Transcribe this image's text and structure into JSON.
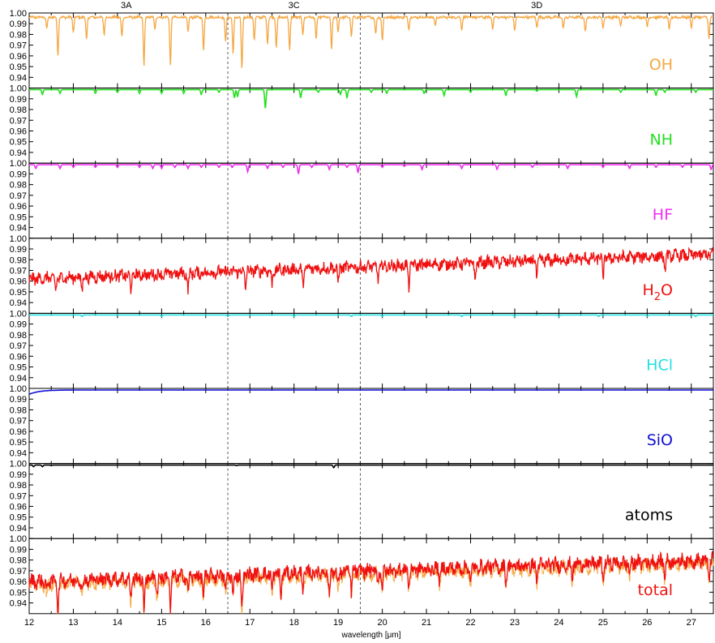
{
  "chart_data": {
    "type": "line",
    "xlabel": "wavelength [μm]",
    "xlim": [
      12,
      27.5
    ],
    "ylim": [
      0.93,
      1.0
    ],
    "x_ticks": [
      "12",
      "13",
      "14",
      "15",
      "16",
      "17",
      "18",
      "19",
      "20",
      "21",
      "22",
      "23",
      "24",
      "25",
      "26",
      "27"
    ],
    "y_ticks": [
      "0.94",
      "0.95",
      "0.96",
      "0.97",
      "0.98",
      "0.99",
      "1.00"
    ],
    "band_divisions": [
      16.5,
      19.5
    ],
    "band_labels": [
      {
        "label": "3A",
        "x": 14.2
      },
      {
        "label": "3C",
        "x": 18.0
      },
      {
        "label": "3D",
        "x": 23.5
      }
    ],
    "panels": [
      {
        "label": "OH",
        "color": "#F5A742",
        "baseline": 0.996,
        "noise": 0.001,
        "trend": 0.0,
        "lines": [
          [
            12.4,
            0.985
          ],
          [
            12.65,
            0.961
          ],
          [
            13.0,
            0.982
          ],
          [
            13.3,
            0.975
          ],
          [
            13.7,
            0.98
          ],
          [
            14.1,
            0.978
          ],
          [
            14.6,
            0.951
          ],
          [
            14.85,
            0.985
          ],
          [
            15.2,
            0.952
          ],
          [
            15.6,
            0.982
          ],
          [
            15.95,
            0.965
          ],
          [
            16.45,
            0.974
          ],
          [
            16.62,
            0.962
          ],
          [
            16.82,
            0.947
          ],
          [
            17.1,
            0.975
          ],
          [
            17.4,
            0.972
          ],
          [
            17.6,
            0.968
          ],
          [
            17.9,
            0.965
          ],
          [
            18.2,
            0.98
          ],
          [
            18.5,
            0.975
          ],
          [
            18.85,
            0.966
          ],
          [
            19.0,
            0.982
          ],
          [
            19.3,
            0.978
          ],
          [
            19.85,
            0.98
          ],
          [
            20.0,
            0.974
          ],
          [
            20.6,
            0.985
          ],
          [
            21.2,
            0.988
          ],
          [
            21.8,
            0.985
          ],
          [
            22.5,
            0.986
          ],
          [
            23.0,
            0.984
          ],
          [
            23.5,
            0.987
          ],
          [
            24.1,
            0.985
          ],
          [
            24.6,
            0.982
          ],
          [
            25.0,
            0.986
          ],
          [
            25.4,
            0.988
          ],
          [
            26.0,
            0.987
          ],
          [
            26.5,
            0.984
          ],
          [
            27.0,
            0.986
          ],
          [
            27.4,
            0.976
          ]
        ]
      },
      {
        "label": "NH",
        "color": "#22E21F",
        "baseline": 0.9985,
        "noise": 0.0,
        "trend": 0.0,
        "lines": [
          [
            12.3,
            0.994
          ],
          [
            12.7,
            0.995
          ],
          [
            13.5,
            0.995
          ],
          [
            14.0,
            0.996
          ],
          [
            14.5,
            0.995
          ],
          [
            15.0,
            0.995
          ],
          [
            15.5,
            0.995
          ],
          [
            15.9,
            0.994
          ],
          [
            16.3,
            0.996
          ],
          [
            16.65,
            0.991
          ],
          [
            16.72,
            0.992
          ],
          [
            17.35,
            0.981
          ],
          [
            18.15,
            0.991
          ],
          [
            18.55,
            0.996
          ],
          [
            19.05,
            0.994
          ],
          [
            19.2,
            0.991
          ],
          [
            19.75,
            0.996
          ],
          [
            20.1,
            0.995
          ],
          [
            20.95,
            0.995
          ],
          [
            21.4,
            0.993
          ],
          [
            22.0,
            0.996
          ],
          [
            22.8,
            0.993
          ],
          [
            23.5,
            0.997
          ],
          [
            24.4,
            0.992
          ],
          [
            25.4,
            0.996
          ],
          [
            26.2,
            0.993
          ],
          [
            26.4,
            0.996
          ],
          [
            27.1,
            0.996
          ]
        ]
      },
      {
        "label": "HF",
        "color": "#F12FF1",
        "baseline": 0.9985,
        "noise": 0.0,
        "trend": 0.0,
        "lines": [
          [
            12.15,
            0.995
          ],
          [
            12.7,
            0.995
          ],
          [
            13.0,
            0.996
          ],
          [
            13.5,
            0.996
          ],
          [
            14.0,
            0.996
          ],
          [
            14.5,
            0.996
          ],
          [
            14.8,
            0.995
          ],
          [
            15.0,
            0.995
          ],
          [
            15.3,
            0.996
          ],
          [
            15.6,
            0.995
          ],
          [
            15.9,
            0.996
          ],
          [
            16.3,
            0.996
          ],
          [
            16.6,
            0.996
          ],
          [
            16.95,
            0.992
          ],
          [
            17.4,
            0.995
          ],
          [
            17.75,
            0.996
          ],
          [
            18.1,
            0.99
          ],
          [
            18.4,
            0.996
          ],
          [
            18.8,
            0.994
          ],
          [
            19.2,
            0.996
          ],
          [
            19.45,
            0.991
          ],
          [
            20.0,
            0.996
          ],
          [
            20.5,
            0.997
          ],
          [
            20.9,
            0.994
          ],
          [
            21.8,
            0.995
          ],
          [
            22.6,
            0.994
          ],
          [
            23.4,
            0.996
          ],
          [
            24.2,
            0.995
          ],
          [
            25.0,
            0.996
          ],
          [
            25.6,
            0.995
          ],
          [
            26.2,
            0.996
          ],
          [
            26.8,
            0.996
          ],
          [
            27.45,
            0.994
          ]
        ]
      },
      {
        "label": "H₂O",
        "label_main": "H",
        "label_sub": "2",
        "label_tail": "O",
        "color": "#F01010",
        "baseline": 0.962,
        "noise": 0.005,
        "trend": 0.023,
        "lines": [
          [
            12.6,
            0.95
          ],
          [
            13.2,
            0.952
          ],
          [
            14.3,
            0.951
          ],
          [
            15.6,
            0.95
          ],
          [
            16.9,
            0.954
          ],
          [
            17.5,
            0.956
          ],
          [
            18.2,
            0.955
          ],
          [
            19.0,
            0.958
          ],
          [
            19.9,
            0.96
          ],
          [
            20.6,
            0.955
          ],
          [
            22.1,
            0.96
          ],
          [
            23.5,
            0.964
          ],
          [
            25.0,
            0.965
          ],
          [
            26.4,
            0.968
          ]
        ]
      },
      {
        "label": "HCl",
        "color": "#22DEDE",
        "baseline": 0.9985,
        "noise": 0.0,
        "trend": 0.0,
        "lines": [
          [
            13.2,
            0.997
          ],
          [
            15.0,
            0.997
          ],
          [
            16.5,
            0.997
          ],
          [
            18.0,
            0.997
          ],
          [
            19.3,
            0.997
          ],
          [
            20.0,
            0.997
          ],
          [
            21.8,
            0.997
          ],
          [
            23.0,
            0.997
          ],
          [
            24.0,
            0.997
          ],
          [
            24.9,
            0.997
          ],
          [
            26.0,
            0.997
          ],
          [
            27.1,
            0.997
          ]
        ]
      },
      {
        "label": "SiO",
        "color": "#1010D6",
        "baseline": 0.9985,
        "noise": 0.0,
        "trend": 0.0,
        "ramp": true,
        "lines": []
      },
      {
        "label": "atoms",
        "color": "#000000",
        "baseline": 0.9985,
        "noise": 0.0,
        "trend": 0.0,
        "lines": [
          [
            12.1,
            0.997
          ],
          [
            12.3,
            0.997
          ],
          [
            12.5,
            0.998
          ],
          [
            16.7,
            0.998
          ],
          [
            18.9,
            0.996
          ],
          [
            22.0,
            0.998
          ]
        ]
      },
      {
        "label": "total",
        "color": "#F01010",
        "secondary_color": "#F5A742",
        "baseline": 0.96,
        "noise": 0.006,
        "trend": 0.02,
        "lines": [
          [
            12.4,
            0.949
          ],
          [
            12.65,
            0.932
          ],
          [
            13.2,
            0.95
          ],
          [
            14.3,
            0.942
          ],
          [
            14.6,
            0.931
          ],
          [
            14.9,
            0.948
          ],
          [
            15.2,
            0.935
          ],
          [
            15.6,
            0.95
          ],
          [
            15.95,
            0.943
          ],
          [
            16.45,
            0.95
          ],
          [
            16.62,
            0.943
          ],
          [
            16.82,
            0.932
          ],
          [
            17.5,
            0.95
          ],
          [
            17.7,
            0.945
          ],
          [
            18.2,
            0.952
          ],
          [
            18.8,
            0.946
          ],
          [
            19.0,
            0.955
          ],
          [
            19.3,
            0.95
          ],
          [
            19.9,
            0.958
          ],
          [
            20.0,
            0.952
          ],
          [
            20.6,
            0.955
          ],
          [
            21.3,
            0.96
          ],
          [
            22.0,
            0.958
          ],
          [
            22.8,
            0.96
          ],
          [
            23.5,
            0.962
          ],
          [
            24.3,
            0.963
          ],
          [
            25.0,
            0.962
          ],
          [
            25.6,
            0.965
          ],
          [
            26.4,
            0.966
          ],
          [
            27.4,
            0.96
          ]
        ]
      }
    ]
  }
}
